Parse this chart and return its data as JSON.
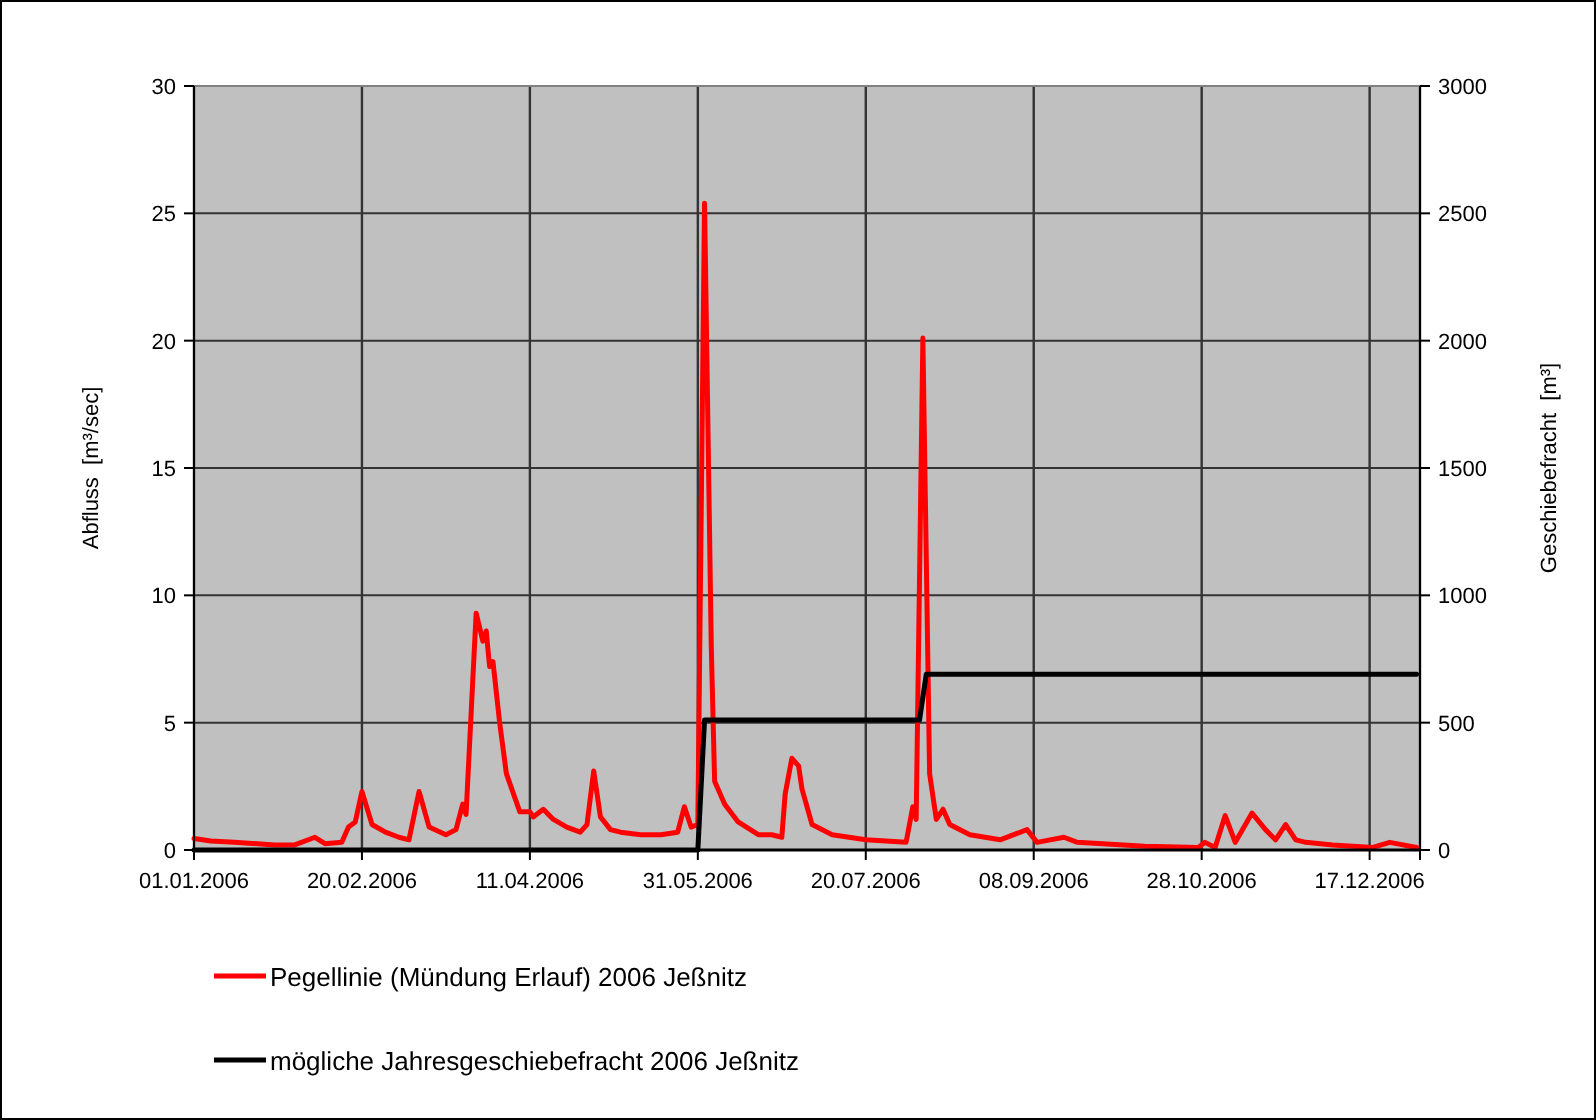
{
  "chart_data": {
    "type": "line",
    "ylabel": "Abfluss  [m³/sec]",
    "y2label": "Geschiebefracht  [m³]",
    "xlim": [
      "2006-01-01",
      "2007-01-01"
    ],
    "xticks": [
      {
        "value": "2006-01-01",
        "label": "01.01.2006"
      },
      {
        "value": "2006-02-20",
        "label": "20.02.2006"
      },
      {
        "value": "2006-04-11",
        "label": "11.04.2006"
      },
      {
        "value": "2006-05-31",
        "label": "31.05.2006"
      },
      {
        "value": "2006-07-20",
        "label": "20.07.2006"
      },
      {
        "value": "2006-09-08",
        "label": "08.09.2006"
      },
      {
        "value": "2006-10-28",
        "label": "28.10.2006"
      },
      {
        "value": "2006-12-17",
        "label": "17.12.2006"
      },
      {
        "value": "2007-01-01",
        "label": null
      }
    ],
    "ylim": [
      0,
      30
    ],
    "yticks": [
      0,
      5,
      10,
      15,
      20,
      25,
      30
    ],
    "y2lim": [
      0,
      3000
    ],
    "y2ticks": [
      0,
      500,
      1000,
      1500,
      2000,
      2500,
      3000
    ],
    "grid": true,
    "legend": "bottom",
    "marker": "none",
    "line_style": "solid",
    "series": [
      {
        "name": "Pegellinie (Mündung Erlauf) 2006 Jeßnitz",
        "color": "#ff0000",
        "x": [
          "2006-01-01",
          "2006-01-06",
          "2006-01-13",
          "2006-01-25",
          "2006-01-31",
          "2006-02-06",
          "2006-02-09",
          "2006-02-14",
          "2006-02-16",
          "2006-02-18",
          "2006-02-20",
          "2006-02-23",
          "2006-02-27",
          "2006-03-03",
          "2006-03-06",
          "2006-03-09",
          "2006-03-12",
          "2006-03-17",
          "2006-03-20",
          "2006-03-22",
          "2006-03-23",
          "2006-03-26",
          "2006-03-28",
          "2006-03-29",
          "2006-03-30",
          "2006-03-31",
          "2006-04-02",
          "2006-04-04",
          "2006-04-08",
          "2006-04-11",
          "2006-04-12",
          "2006-04-15",
          "2006-04-18",
          "2006-04-22",
          "2006-04-26",
          "2006-04-28",
          "2006-04-30",
          "2006-05-02",
          "2006-05-05",
          "2006-05-08",
          "2006-05-14",
          "2006-05-20",
          "2006-05-25",
          "2006-05-27",
          "2006-05-29",
          "2006-05-31",
          "2006-06-02",
          "2006-06-04",
          "2006-06-05",
          "2006-06-08",
          "2006-06-12",
          "2006-06-18",
          "2006-06-22",
          "2006-06-25",
          "2006-06-26",
          "2006-06-28",
          "2006-06-30",
          "2006-07-01",
          "2006-07-04",
          "2006-07-10",
          "2006-07-20",
          "2006-08-01",
          "2006-08-03",
          "2006-08-04",
          "2006-08-06",
          "2006-08-08",
          "2006-08-10",
          "2006-08-12",
          "2006-08-14",
          "2006-08-20",
          "2006-08-29",
          "2006-09-06",
          "2006-09-09",
          "2006-09-17",
          "2006-09-21",
          "2006-10-11",
          "2006-10-27",
          "2006-10-29",
          "2006-11-01",
          "2006-11-04",
          "2006-11-07",
          "2006-11-12",
          "2006-11-16",
          "2006-11-19",
          "2006-11-22",
          "2006-11-25",
          "2006-11-28",
          "2006-12-06",
          "2006-12-18",
          "2006-12-23",
          "2006-12-31"
        ],
        "values": [
          0.45,
          0.35,
          0.3,
          0.2,
          0.2,
          0.5,
          0.25,
          0.3,
          0.9,
          1.1,
          2.3,
          1.0,
          0.7,
          0.5,
          0.4,
          2.3,
          0.9,
          0.6,
          0.8,
          1.8,
          1.4,
          9.3,
          8.2,
          8.6,
          7.2,
          7.4,
          5.0,
          3.0,
          1.5,
          1.5,
          1.3,
          1.6,
          1.2,
          0.9,
          0.7,
          1.0,
          3.1,
          1.3,
          0.8,
          0.7,
          0.6,
          0.6,
          0.7,
          1.7,
          0.9,
          1.0,
          25.4,
          8,
          2.7,
          1.8,
          1.1,
          0.6,
          0.6,
          0.5,
          2.2,
          3.6,
          3.3,
          2.4,
          1.0,
          0.6,
          0.4,
          0.3,
          1.7,
          1.2,
          20.1,
          3.0,
          1.2,
          1.6,
          1.0,
          0.6,
          0.4,
          0.8,
          0.3,
          0.5,
          0.3,
          0.15,
          0.1,
          0.3,
          0.1,
          1.35,
          0.3,
          1.45,
          0.8,
          0.4,
          1.0,
          0.4,
          0.3,
          0.2,
          0.1,
          0.3,
          0.1
        ]
      },
      {
        "name": "mögliche Jahresgeschiebefracht 2006 Jeßnitz",
        "color": "#000000",
        "axis": "y2",
        "x": [
          "2006-01-01",
          "2006-05-31",
          "2006-06-02",
          "2006-08-05",
          "2006-08-07",
          "2006-12-31"
        ],
        "values": [
          0,
          0,
          510,
          510,
          690,
          690
        ]
      }
    ]
  }
}
